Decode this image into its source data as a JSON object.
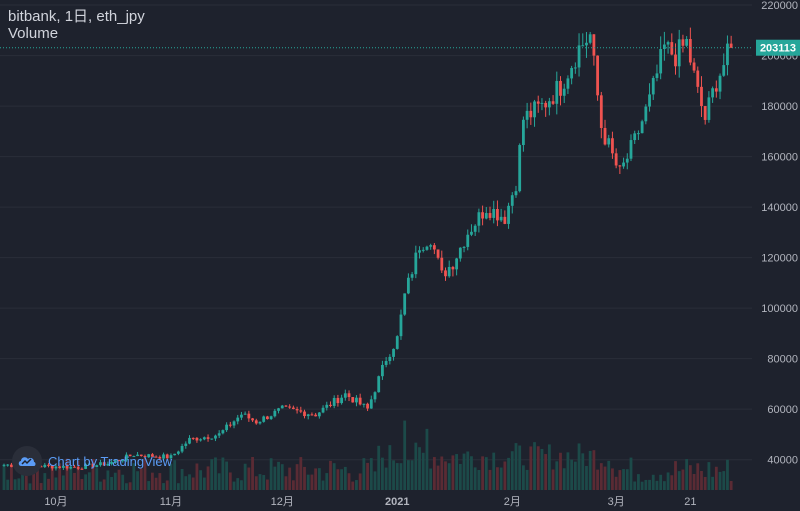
{
  "header": {
    "title": "bitbank, 1日, eth_jpy",
    "indicator": "Volume"
  },
  "watermark": {
    "text": "Chart by TradingView",
    "icon": "tradingview-cloud-icon"
  },
  "colors": {
    "background": "#1e222d",
    "up": "#26a69a",
    "down": "#ef5350",
    "vol_up": "#1c4a49",
    "vol_down": "#5a2b34",
    "grid": "#2a2e39",
    "axis_text": "#b2b5be",
    "last_price": "#26a69a"
  },
  "chart_data": {
    "type": "candlestick",
    "y_ticks": [
      "40000",
      "60000",
      "80000",
      "100000",
      "120000",
      "140000",
      "160000",
      "180000",
      "200000",
      "220000"
    ],
    "ylim": [
      28000,
      222000
    ],
    "x_ticks": [
      {
        "label": "10月",
        "bold": false,
        "index": 14
      },
      {
        "label": "11月",
        "bold": false,
        "index": 45
      },
      {
        "label": "12月",
        "bold": false,
        "index": 75
      },
      {
        "label": "2021",
        "bold": true,
        "index": 106
      },
      {
        "label": "2月",
        "bold": false,
        "index": 137
      },
      {
        "label": "3月",
        "bold": false,
        "index": 165
      },
      {
        "label": "21",
        "bold": false,
        "index": 185
      }
    ],
    "last_price": "203113",
    "close_keypoints": [
      [
        0,
        38000
      ],
      [
        10,
        37500
      ],
      [
        20,
        37000
      ],
      [
        28,
        38500
      ],
      [
        35,
        42000
      ],
      [
        45,
        41000
      ],
      [
        50,
        48000
      ],
      [
        58,
        50000
      ],
      [
        64,
        58000
      ],
      [
        68,
        55000
      ],
      [
        75,
        60000
      ],
      [
        84,
        58000
      ],
      [
        92,
        66000
      ],
      [
        98,
        60000
      ],
      [
        103,
        80000
      ],
      [
        106,
        88000
      ],
      [
        108,
        105000
      ],
      [
        112,
        125000
      ],
      [
        115,
        128000
      ],
      [
        118,
        113000
      ],
      [
        121,
        118000
      ],
      [
        125,
        130000
      ],
      [
        130,
        140000
      ],
      [
        135,
        136000
      ],
      [
        138,
        150000
      ],
      [
        140,
        175000
      ],
      [
        145,
        180000
      ],
      [
        150,
        188000
      ],
      [
        155,
        203000
      ],
      [
        158,
        208000
      ],
      [
        161,
        172000
      ],
      [
        164,
        160000
      ],
      [
        166,
        153000
      ],
      [
        170,
        166000
      ],
      [
        174,
        182000
      ],
      [
        178,
        203000
      ],
      [
        181,
        200000
      ],
      [
        184,
        205000
      ],
      [
        187,
        185000
      ],
      [
        189,
        175000
      ],
      [
        192,
        190000
      ],
      [
        196,
        203113
      ]
    ]
  }
}
